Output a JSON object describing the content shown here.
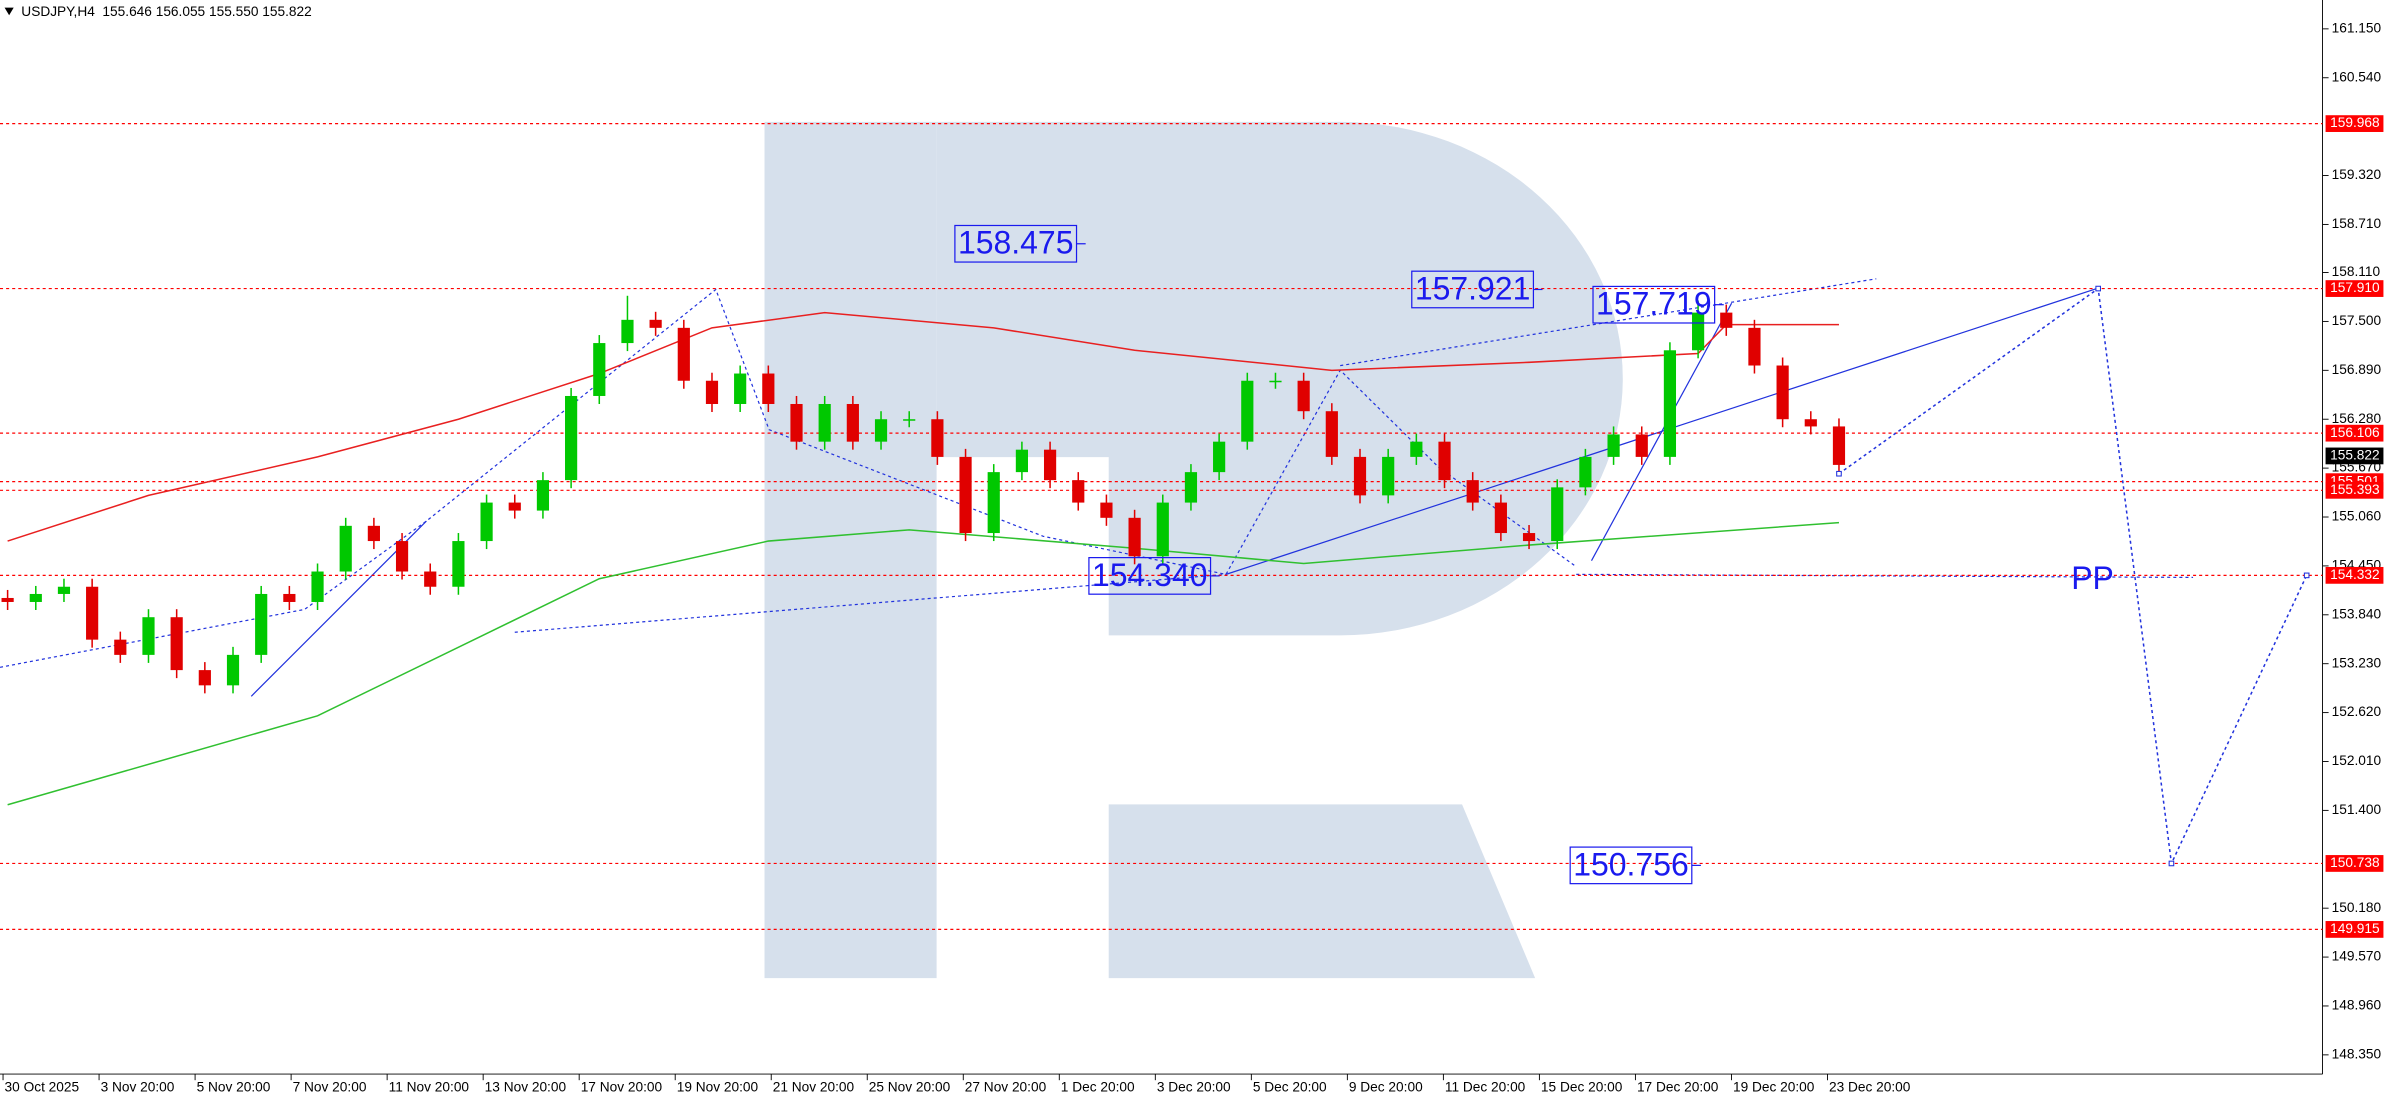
{
  "chart_data": {
    "type": "candlestick",
    "title": "USDJPY,H4  155.646 156.055 155.550 155.822",
    "categories": [
      "30 Oct 2025",
      "3 Nov 20:00",
      "5 Nov 20:00",
      "7 Nov 20:00",
      "11 Nov 20:00",
      "13 Nov 20:00",
      "17 Nov 20:00",
      "19 Nov 20:00",
      "21 Nov 20:00",
      "25 Nov 20:00",
      "27 Nov 20:00",
      "1 Dec 20:00",
      "3 Dec 20:00",
      "5 Dec 20:00",
      "9 Dec 20:00",
      "11 Dec 20:00",
      "15 Dec 20:00",
      "17 Dec 20:00",
      "19 Dec 20:00",
      "23 Dec 20:00"
    ],
    "open": [
      154.05,
      154.0,
      154.1,
      154.19,
      153.53,
      153.34,
      153.81,
      153.15,
      152.96,
      153.34,
      154.1,
      154.0,
      154.38,
      154.95,
      154.76,
      154.38,
      154.19,
      154.76,
      155.24,
      155.14,
      155.52,
      156.57,
      157.23,
      157.52,
      157.42,
      156.76,
      156.47,
      156.85,
      156.47,
      156.0,
      156.47,
      156.0,
      156.28,
      156.28,
      155.81,
      154.86,
      155.62,
      155.9,
      155.52,
      155.24,
      155.05,
      154.57,
      155.24,
      155.62,
      156.0,
      156.76,
      156.76,
      156.38,
      155.81,
      155.33,
      155.81,
      156.0,
      155.52,
      155.24,
      154.86,
      154.76,
      155.43,
      155.81,
      156.09,
      155.81,
      157.14,
      157.61,
      157.42,
      156.95,
      156.28,
      156.19
    ],
    "high": [
      154.15,
      154.2,
      154.29,
      154.29,
      153.63,
      153.91,
      153.91,
      153.25,
      153.44,
      154.2,
      154.2,
      154.48,
      155.05,
      155.05,
      154.86,
      154.48,
      154.86,
      155.34,
      155.34,
      155.62,
      156.67,
      157.33,
      157.82,
      157.62,
      157.52,
      156.86,
      156.95,
      156.95,
      156.57,
      156.57,
      156.57,
      156.38,
      156.38,
      156.38,
      155.91,
      155.72,
      156.0,
      156.0,
      155.62,
      155.34,
      155.15,
      155.34,
      155.72,
      156.1,
      156.86,
      156.86,
      156.86,
      156.48,
      155.91,
      155.91,
      156.1,
      156.1,
      155.62,
      155.34,
      154.96,
      155.53,
      155.91,
      156.19,
      156.19,
      157.24,
      157.76,
      157.71,
      157.52,
      157.05,
      156.38,
      156.29
    ],
    "low": [
      153.9,
      153.9,
      154.0,
      153.43,
      153.24,
      153.24,
      153.05,
      152.86,
      152.86,
      153.24,
      153.9,
      153.9,
      154.28,
      154.66,
      154.28,
      154.09,
      154.09,
      154.66,
      155.04,
      155.04,
      155.42,
      156.47,
      157.13,
      157.32,
      156.66,
      156.37,
      156.37,
      156.37,
      155.9,
      155.9,
      155.9,
      155.9,
      156.18,
      155.71,
      154.76,
      154.76,
      155.52,
      155.42,
      155.14,
      154.95,
      154.47,
      154.47,
      155.14,
      155.52,
      155.9,
      156.66,
      156.28,
      155.71,
      155.23,
      155.23,
      155.71,
      155.42,
      155.14,
      154.76,
      154.66,
      154.66,
      155.33,
      155.71,
      155.71,
      155.71,
      157.04,
      157.32,
      156.85,
      156.18,
      156.09,
      155.61
    ],
    "close": [
      154.0,
      154.1,
      154.19,
      153.53,
      153.34,
      153.81,
      153.15,
      152.96,
      153.34,
      154.1,
      154.0,
      154.38,
      154.95,
      154.76,
      154.38,
      154.19,
      154.76,
      155.24,
      155.14,
      155.52,
      156.57,
      157.23,
      157.52,
      157.42,
      156.76,
      156.47,
      156.85,
      156.47,
      156.0,
      156.47,
      156.0,
      156.28,
      156.28,
      155.81,
      154.86,
      155.62,
      155.9,
      155.52,
      155.24,
      155.05,
      154.57,
      155.24,
      155.62,
      156.0,
      156.76,
      156.76,
      156.38,
      155.81,
      155.33,
      155.81,
      156.0,
      155.52,
      155.24,
      154.86,
      154.76,
      155.43,
      155.81,
      156.09,
      155.81,
      157.14,
      157.61,
      157.42,
      156.95,
      156.28,
      156.19,
      155.71
    ],
    "up_color": "#00c800",
    "down_color": "#e00000",
    "ylim": [
      148.11,
      161.51
    ],
    "yticks": [
      {
        "value": 161.15,
        "label": "161.150"
      },
      {
        "value": 160.54,
        "label": "160.540"
      },
      {
        "value": 159.32,
        "label": "159.320"
      },
      {
        "value": 158.71,
        "label": "158.710"
      },
      {
        "value": 158.11,
        "label": "158.110"
      },
      {
        "value": 157.5,
        "label": "157.500"
      },
      {
        "value": 156.89,
        "label": "156.890"
      },
      {
        "value": 156.28,
        "label": "156.280"
      },
      {
        "value": 155.67,
        "label": "155.670"
      },
      {
        "value": 155.06,
        "label": "155.060"
      },
      {
        "value": 154.45,
        "label": "154.450"
      },
      {
        "value": 153.84,
        "label": "153.840"
      },
      {
        "value": 153.23,
        "label": "153.230"
      },
      {
        "value": 152.62,
        "label": "152.620"
      },
      {
        "value": 152.01,
        "label": "152.010"
      },
      {
        "value": 151.4,
        "label": "151.400"
      },
      {
        "value": 150.18,
        "label": "150.180"
      },
      {
        "value": 149.57,
        "label": "149.570"
      },
      {
        "value": 148.96,
        "label": "148.960"
      },
      {
        "value": 148.35,
        "label": "148.350"
      }
    ],
    "indicators": [
      {
        "color": "#e82020",
        "x": [
          0,
          5,
          11,
          16,
          21,
          25,
          29,
          35,
          40,
          47,
          54,
          60,
          61,
          65
        ],
        "values": [
          154.76,
          155.33,
          155.81,
          156.28,
          156.85,
          157.42,
          157.61,
          157.42,
          157.14,
          156.89,
          156.99,
          157.1,
          157.46,
          157.46
        ]
      },
      {
        "color": "#30c030",
        "x": [
          0,
          11,
          21,
          27,
          32,
          40,
          46,
          54,
          65
        ],
        "values": [
          151.47,
          152.58,
          154.29,
          154.76,
          154.9,
          154.67,
          154.48,
          154.71,
          154.99
        ]
      }
    ],
    "levels": [
      159.968,
      {
        "value": 157.91,
        "label": "157.910"
      },
      156.106,
      155.501,
      155.393,
      154.332,
      150.738,
      149.915
    ],
    "level_color": "#ff0000",
    "current_price": 155.822,
    "forecast": {
      "color": "#2233dd",
      "x": [
        65,
        74.2,
        76.8,
        81.6
      ],
      "values": [
        155.6,
        157.91,
        150.738,
        154.332
      ]
    },
    "annotations": [
      "158.475",
      "157.921",
      "157.719",
      "154.340",
      "150.756",
      "PP"
    ]
  }
}
